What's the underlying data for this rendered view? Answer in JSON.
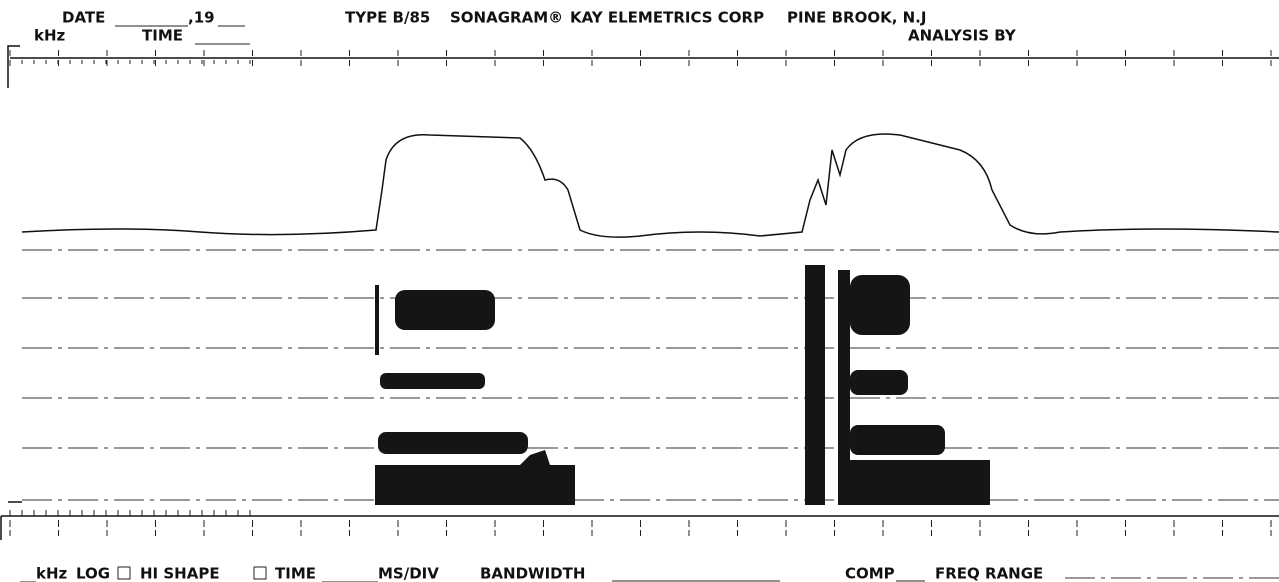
{
  "header": {
    "date": "DATE",
    "year": ",19",
    "title": "TYPE B/85",
    "product": "SONAGRAM®",
    "company": "KAY ELEMETRICS CORP",
    "location": "PINE BROOK, N.J",
    "khz": "kHz",
    "time": "TIME",
    "analysis": "ANALYSIS BY"
  },
  "footer": {
    "khz": "kHz",
    "log": "LOG",
    "hi_shape": "HI SHAPE",
    "time": "TIME",
    "ms_div": "MS/DIV",
    "bandwidth": "BANDWIDTH",
    "comp": "COMP",
    "freq_range": "FREQ RANGE"
  }
}
